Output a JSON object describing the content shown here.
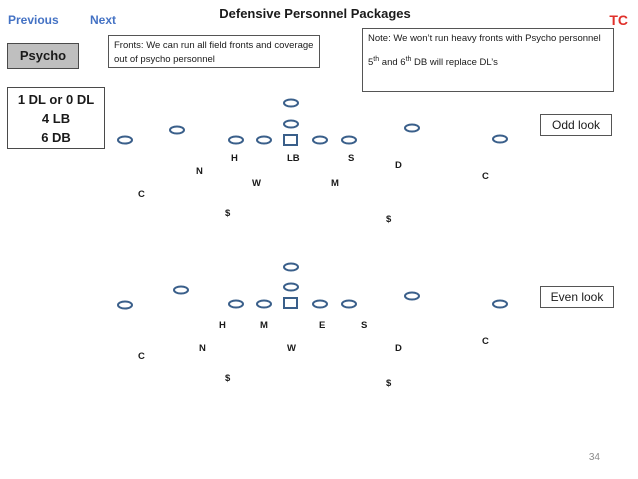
{
  "nav": {
    "previous": "Previous",
    "next": "Next"
  },
  "title": "Defensive Personnel Packages",
  "corner_tag": "TC",
  "package_button": "Psycho",
  "fronts_note": "Fronts:   We can run all field fronts  and coverage out of psycho personnel",
  "personnel_note": {
    "line1": "Note:  We won’t run heavy fronts with Psycho personnel",
    "line2_pre": "5",
    "line2_sup1": "th",
    "line2_mid": " and 6",
    "line2_sup2": "th",
    "line2_post": " DB will replace DL’s"
  },
  "counts": [
    "1 DL or 0 DL",
    "4 LB",
    "6 DB"
  ],
  "odd_label": "Odd look",
  "even_label": "Even look",
  "page_number": "34",
  "colors": {
    "link": "#4472c4",
    "accent": "#e0302a",
    "player_stroke": "#3a5f8a"
  },
  "odd_look": {
    "labels": [
      "N",
      "H",
      "LB",
      "S",
      "D",
      "W",
      "M",
      "C",
      "C",
      "$",
      "$"
    ]
  },
  "even_look": {
    "labels": [
      "H",
      "M",
      "E",
      "S",
      "N",
      "W",
      "D",
      "C",
      "C",
      "$",
      "$"
    ]
  }
}
